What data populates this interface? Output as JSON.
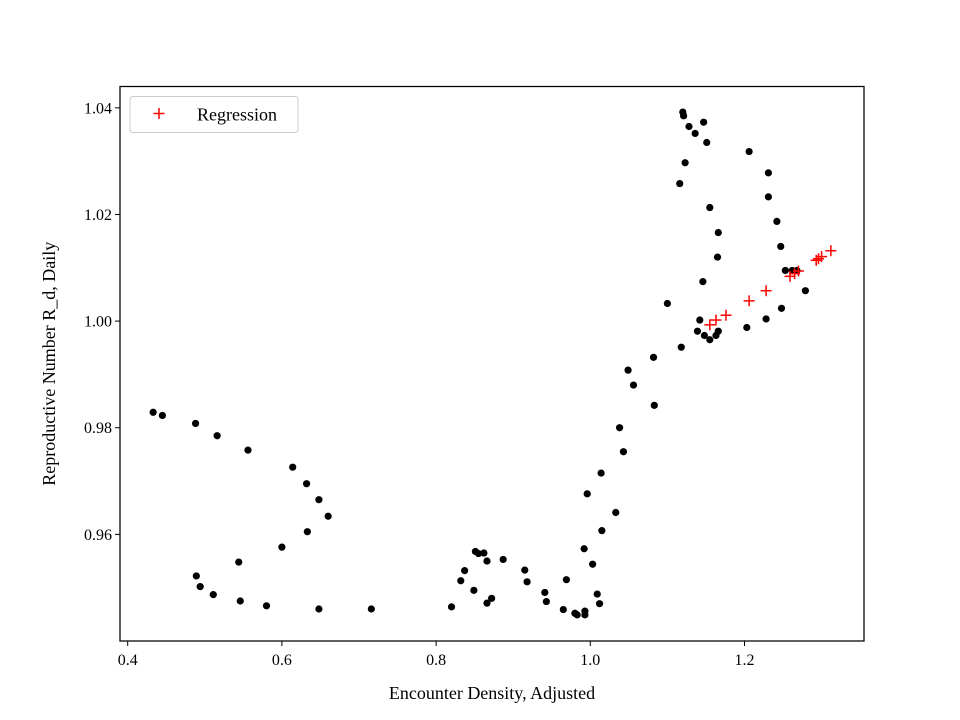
{
  "chart_data": {
    "type": "scatter",
    "title": "",
    "xlabel": "Encounter Density, Adjusted",
    "ylabel": "Reproductive Number R_d, Daily",
    "xlim": [
      0.39,
      1.355
    ],
    "ylim": [
      0.94,
      1.044
    ],
    "x_ticks": [
      0.4,
      0.6,
      0.8,
      1.0,
      1.2
    ],
    "x_tick_labels": [
      "0.4",
      "0.6",
      "0.8",
      "1.0",
      "1.2"
    ],
    "y_ticks": [
      0.96,
      0.98,
      1.0,
      1.02,
      1.04
    ],
    "y_tick_labels": [
      "0.96",
      "0.98",
      "1.00",
      "1.02",
      "1.04"
    ],
    "grid": false,
    "legend_position": "top-left",
    "series": [
      {
        "marker": "circle",
        "color": "#000000",
        "points": [
          [
            0.433,
            0.9829
          ],
          [
            0.445,
            0.9823
          ],
          [
            0.488,
            0.9808
          ],
          [
            0.516,
            0.9785
          ],
          [
            0.556,
            0.9758
          ],
          [
            0.614,
            0.9726
          ],
          [
            0.632,
            0.9695
          ],
          [
            0.648,
            0.9665
          ],
          [
            0.66,
            0.9634
          ],
          [
            0.633,
            0.9605
          ],
          [
            0.6,
            0.9576
          ],
          [
            0.544,
            0.9548
          ],
          [
            0.489,
            0.9522
          ],
          [
            0.494,
            0.9502
          ],
          [
            0.511,
            0.9487
          ],
          [
            0.546,
            0.9475
          ],
          [
            0.58,
            0.9466
          ],
          [
            0.648,
            0.946
          ],
          [
            0.716,
            0.946
          ],
          [
            0.82,
            0.9464
          ],
          [
            0.832,
            0.9513
          ],
          [
            0.837,
            0.9532
          ],
          [
            0.851,
            0.9568
          ],
          [
            0.855,
            0.9564
          ],
          [
            0.862,
            0.9565
          ],
          [
            0.866,
            0.955
          ],
          [
            0.849,
            0.9495
          ],
          [
            0.866,
            0.9471
          ],
          [
            0.872,
            0.948
          ],
          [
            0.887,
            0.9553
          ],
          [
            0.915,
            0.9533
          ],
          [
            0.918,
            0.9511
          ],
          [
            0.941,
            0.9491
          ],
          [
            0.943,
            0.9474
          ],
          [
            0.965,
            0.9459
          ],
          [
            0.969,
            0.9515
          ],
          [
            0.98,
            0.9452
          ],
          [
            0.983,
            0.9449
          ],
          [
            0.993,
            0.9449
          ],
          [
            0.993,
            0.9456
          ],
          [
            0.992,
            0.9573
          ],
          [
            0.996,
            0.9676
          ],
          [
            1.003,
            0.9544
          ],
          [
            1.009,
            0.9488
          ],
          [
            1.012,
            0.947
          ],
          [
            1.014,
            0.9715
          ],
          [
            1.015,
            0.9607
          ],
          [
            1.033,
            0.9641
          ],
          [
            1.038,
            0.98
          ],
          [
            1.043,
            0.9755
          ],
          [
            1.049,
            0.9908
          ],
          [
            1.056,
            0.988
          ],
          [
            1.082,
            0.9932
          ],
          [
            1.083,
            0.9842
          ],
          [
            1.1,
            1.0033
          ],
          [
            1.116,
            1.0258
          ],
          [
            1.118,
            0.9951
          ],
          [
            1.12,
            1.0392
          ],
          [
            1.121,
            1.0385
          ],
          [
            1.123,
            1.0297
          ],
          [
            1.128,
            1.0365
          ],
          [
            1.136,
            1.0352
          ],
          [
            1.139,
            0.9981
          ],
          [
            1.142,
            1.0002
          ],
          [
            1.146,
            1.0074
          ],
          [
            1.147,
            1.0373
          ],
          [
            1.148,
            0.9973
          ],
          [
            1.151,
            1.0335
          ],
          [
            1.155,
            1.0213
          ],
          [
            1.155,
            0.9965
          ],
          [
            1.163,
            0.9973
          ],
          [
            1.165,
            1.012
          ],
          [
            1.166,
            0.9981
          ],
          [
            1.166,
            1.0166
          ],
          [
            1.203,
            0.9988
          ],
          [
            1.206,
            1.0318
          ],
          [
            1.228,
            1.0004
          ],
          [
            1.231,
            1.0278
          ],
          [
            1.231,
            1.0233
          ],
          [
            1.242,
            1.0187
          ],
          [
            1.247,
            1.014
          ],
          [
            1.248,
            1.0024
          ],
          [
            1.253,
            1.0095
          ],
          [
            1.262,
            1.0095
          ],
          [
            1.268,
            1.0095
          ],
          [
            1.279,
            1.0057
          ]
        ]
      },
      {
        "name": "Regression",
        "marker": "plus",
        "color": "#ff0000",
        "points": [
          [
            1.155,
            0.9993
          ],
          [
            1.163,
            1.0002
          ],
          [
            1.176,
            1.0011
          ],
          [
            1.206,
            1.0038
          ],
          [
            1.228,
            1.0057
          ],
          [
            1.259,
            1.0084
          ],
          [
            1.265,
            1.0089
          ],
          [
            1.27,
            1.0094
          ],
          [
            1.293,
            1.0114
          ],
          [
            1.296,
            1.0117
          ],
          [
            1.3,
            1.0121
          ],
          [
            1.312,
            1.0132
          ]
        ]
      }
    ]
  }
}
